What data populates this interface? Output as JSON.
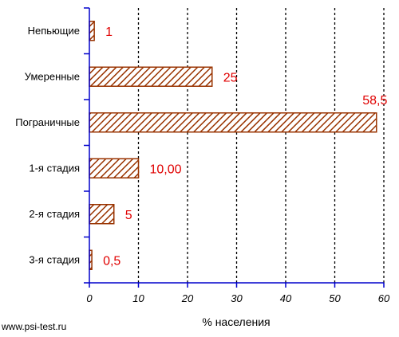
{
  "chart_data": {
    "type": "bar",
    "orientation": "horizontal",
    "categories": [
      "Непьющие",
      "Умеренные",
      "Пограничные",
      "1-я стадия",
      "2-я стадия",
      "3-я стадия"
    ],
    "values": [
      1,
      25,
      58.5,
      10,
      5,
      0.5
    ],
    "data_labels": [
      "1",
      "25",
      "58,5",
      "10,00",
      "5",
      "0,5"
    ],
    "xlabel": "% населения",
    "ylabel": "",
    "xlim": [
      0,
      60
    ],
    "x_ticks": [
      0,
      10,
      20,
      30,
      40,
      50,
      60
    ],
    "x_tick_labels": [
      "0",
      "10",
      "20",
      "30",
      "40",
      "50",
      "60"
    ],
    "grid": "vertical dashed",
    "legend": "none",
    "colors": {
      "bar_stroke": "#993300",
      "bar_hatch": "#993300",
      "data_label": "#e00000",
      "axis": "#0000cc"
    }
  },
  "footer": {
    "text": "www.psi-test.ru"
  }
}
